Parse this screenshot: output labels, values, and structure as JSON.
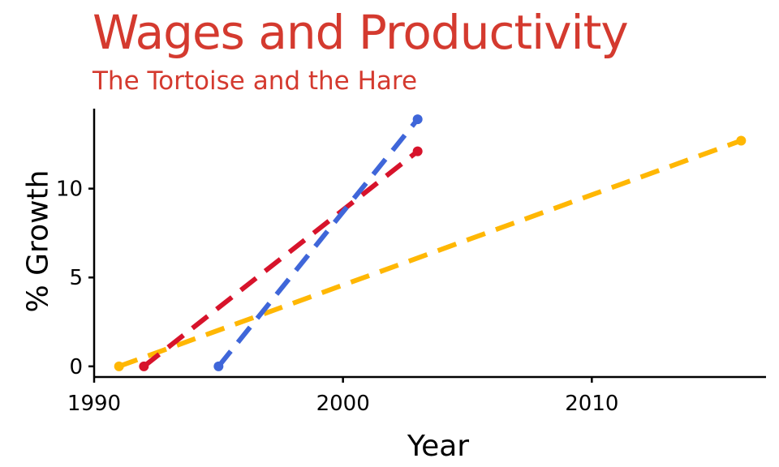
{
  "chart_data": {
    "type": "line",
    "title": "Wages and Productivity",
    "subtitle": "The Tortoise and the Hare",
    "xlabel": "Year",
    "ylabel": "% Growth",
    "xlim": [
      1990,
      2017
    ],
    "ylim": [
      -0.6,
      14.5
    ],
    "x_ticks": [
      1990,
      2000,
      2010
    ],
    "y_ticks": [
      0,
      5,
      10
    ],
    "grid": false,
    "legend": "none",
    "line_style": "dashed",
    "series": [
      {
        "color": "#ffb703",
        "points": [
          [
            1991,
            0.0
          ],
          [
            2016,
            12.7
          ]
        ]
      },
      {
        "color": "#d7132b",
        "points": [
          [
            1992,
            0.0
          ],
          [
            2003,
            12.1
          ]
        ]
      },
      {
        "color": "#3f66d9",
        "points": [
          [
            1995,
            0.0
          ],
          [
            2003,
            13.9
          ]
        ]
      }
    ]
  }
}
